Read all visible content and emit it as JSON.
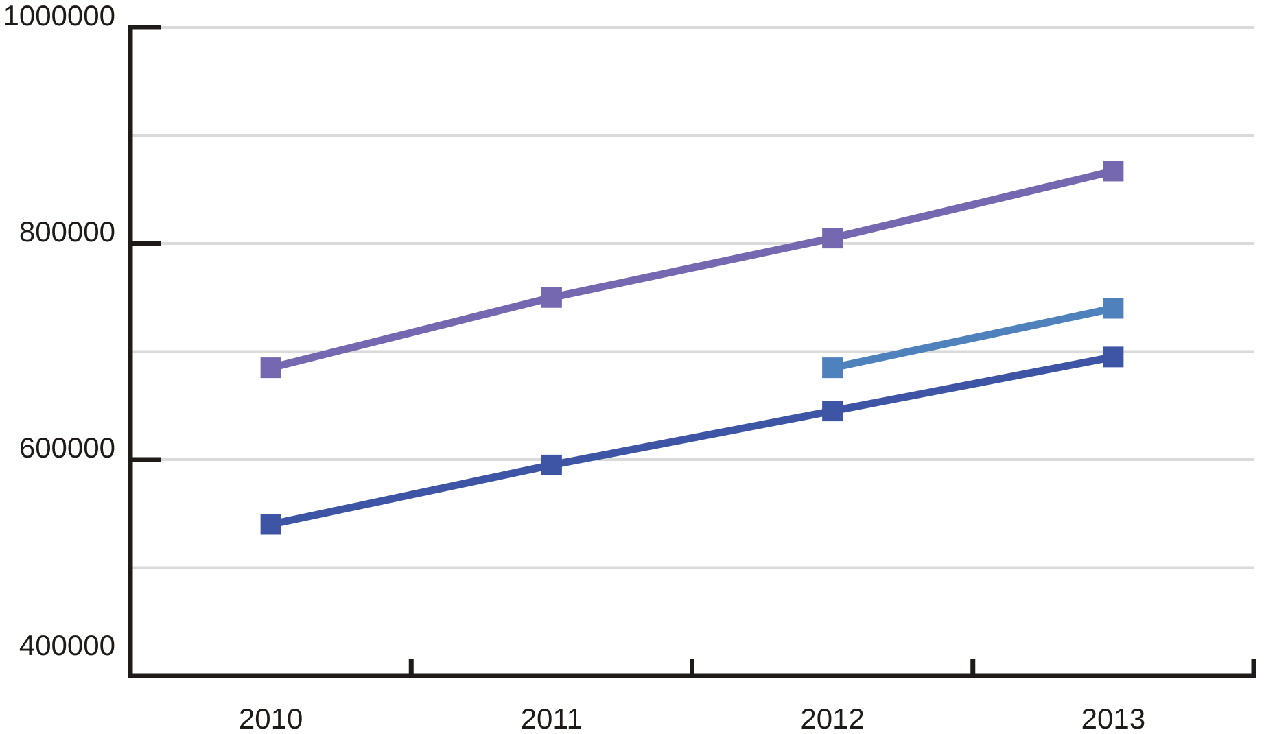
{
  "chart_data": {
    "type": "line",
    "categories": [
      "2010",
      "2011",
      "2012",
      "2013"
    ],
    "series": [
      {
        "name": "series-purple",
        "color": "#7668b0",
        "marker": "square",
        "values": [
          685000,
          750000,
          805000,
          867000
        ]
      },
      {
        "name": "series-light-blue",
        "color": "#4f81bd",
        "marker": "square",
        "values": [
          null,
          null,
          685000,
          740000
        ]
      },
      {
        "name": "series-dark-blue",
        "color": "#3e55a5",
        "marker": "square",
        "values": [
          540000,
          595000,
          645000,
          695000
        ]
      }
    ],
    "y_axis": {
      "min": 400000,
      "max": 1000000,
      "tick_labels": [
        "1000000",
        "800000",
        "600000",
        "400000"
      ],
      "tick_values": [
        1000000,
        800000,
        600000,
        400000
      ],
      "gridline_step": 100000
    },
    "x_axis": {
      "tick_style": "between-categories"
    },
    "grid": true,
    "legend": "none",
    "colors": {
      "axis": "#1e1a18",
      "gridline": "#dadada",
      "label_text": "#1e1a18",
      "background": "#ffffff"
    }
  }
}
